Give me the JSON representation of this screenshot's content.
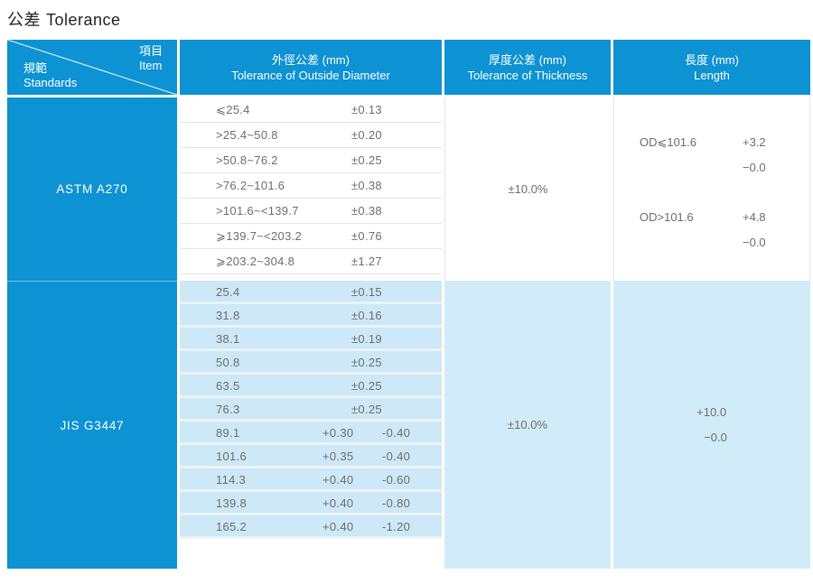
{
  "title": {
    "zh": "公差",
    "en": "Tolerance"
  },
  "colors": {
    "blue": "#0d92d3",
    "light_row": "#cde8f6",
    "light_sep": "#e9f4fb",
    "light_panel": "#d2ebf8",
    "gray_line": "#dfe5e9",
    "text": "#6d6d6d"
  },
  "header": {
    "corner": {
      "item_zh": "項目",
      "item_en": "Item",
      "standards_zh": "規範",
      "standards_en": "Standards"
    },
    "od": {
      "zh": "外徑公差 (mm)",
      "en": "Tolerance of Outside Diameter"
    },
    "thickness": {
      "zh": "厚度公差 (mm)",
      "en": "Tolerance of Thickness"
    },
    "length": {
      "zh": "長度 (mm)",
      "en": "Length"
    }
  },
  "sections": [
    {
      "standard": "ASTM A270",
      "od_rows": [
        {
          "range": "⩽25.4",
          "tol": "±0.13"
        },
        {
          "range": ">25.4~50.8",
          "tol": "±0.20"
        },
        {
          "range": ">50.8~76.2",
          "tol": "±0.25"
        },
        {
          "range": ">76.2~101.6",
          "tol": "±0.38"
        },
        {
          "range": ">101.6~<139.7",
          "tol": "±0.38"
        },
        {
          "range": "⩾139.7~<203.2",
          "tol": "±0.76"
        },
        {
          "range": "⩾203.2~304.8",
          "tol": "±1.27"
        }
      ],
      "thickness": "±10.0%",
      "length": [
        {
          "cond": "OD⩽101.6",
          "plus": "+3.2",
          "minus": "−0.0"
        },
        {
          "cond": "OD>101.6",
          "plus": "+4.8",
          "minus": "−0.0"
        }
      ]
    },
    {
      "standard": "JIS G3447",
      "od_rows": [
        {
          "range": "25.4",
          "tol": "±0.15"
        },
        {
          "range": "31.8",
          "tol": "±0.16"
        },
        {
          "range": "38.1",
          "tol": "±0.19"
        },
        {
          "range": "50.8",
          "tol": "±0.25"
        },
        {
          "range": "63.5",
          "tol": "±0.25"
        },
        {
          "range": "76.3",
          "tol": "±0.25"
        },
        {
          "range": "89.1",
          "tol": "+0.30",
          "tol2": "-0.40"
        },
        {
          "range": "101.6",
          "tol": "+0.35",
          "tol2": "-0.40"
        },
        {
          "range": "114.3",
          "tol": "+0.40",
          "tol2": "-0.60"
        },
        {
          "range": "139.8",
          "tol": "+0.40",
          "tol2": "-0.80"
        },
        {
          "range": "165.2",
          "tol": "+0.40",
          "tol2": "-1.20"
        }
      ],
      "thickness": "±10.0%",
      "length": [
        {
          "cond": "",
          "plus": "+10.0",
          "minus": "−0.0"
        }
      ]
    }
  ]
}
